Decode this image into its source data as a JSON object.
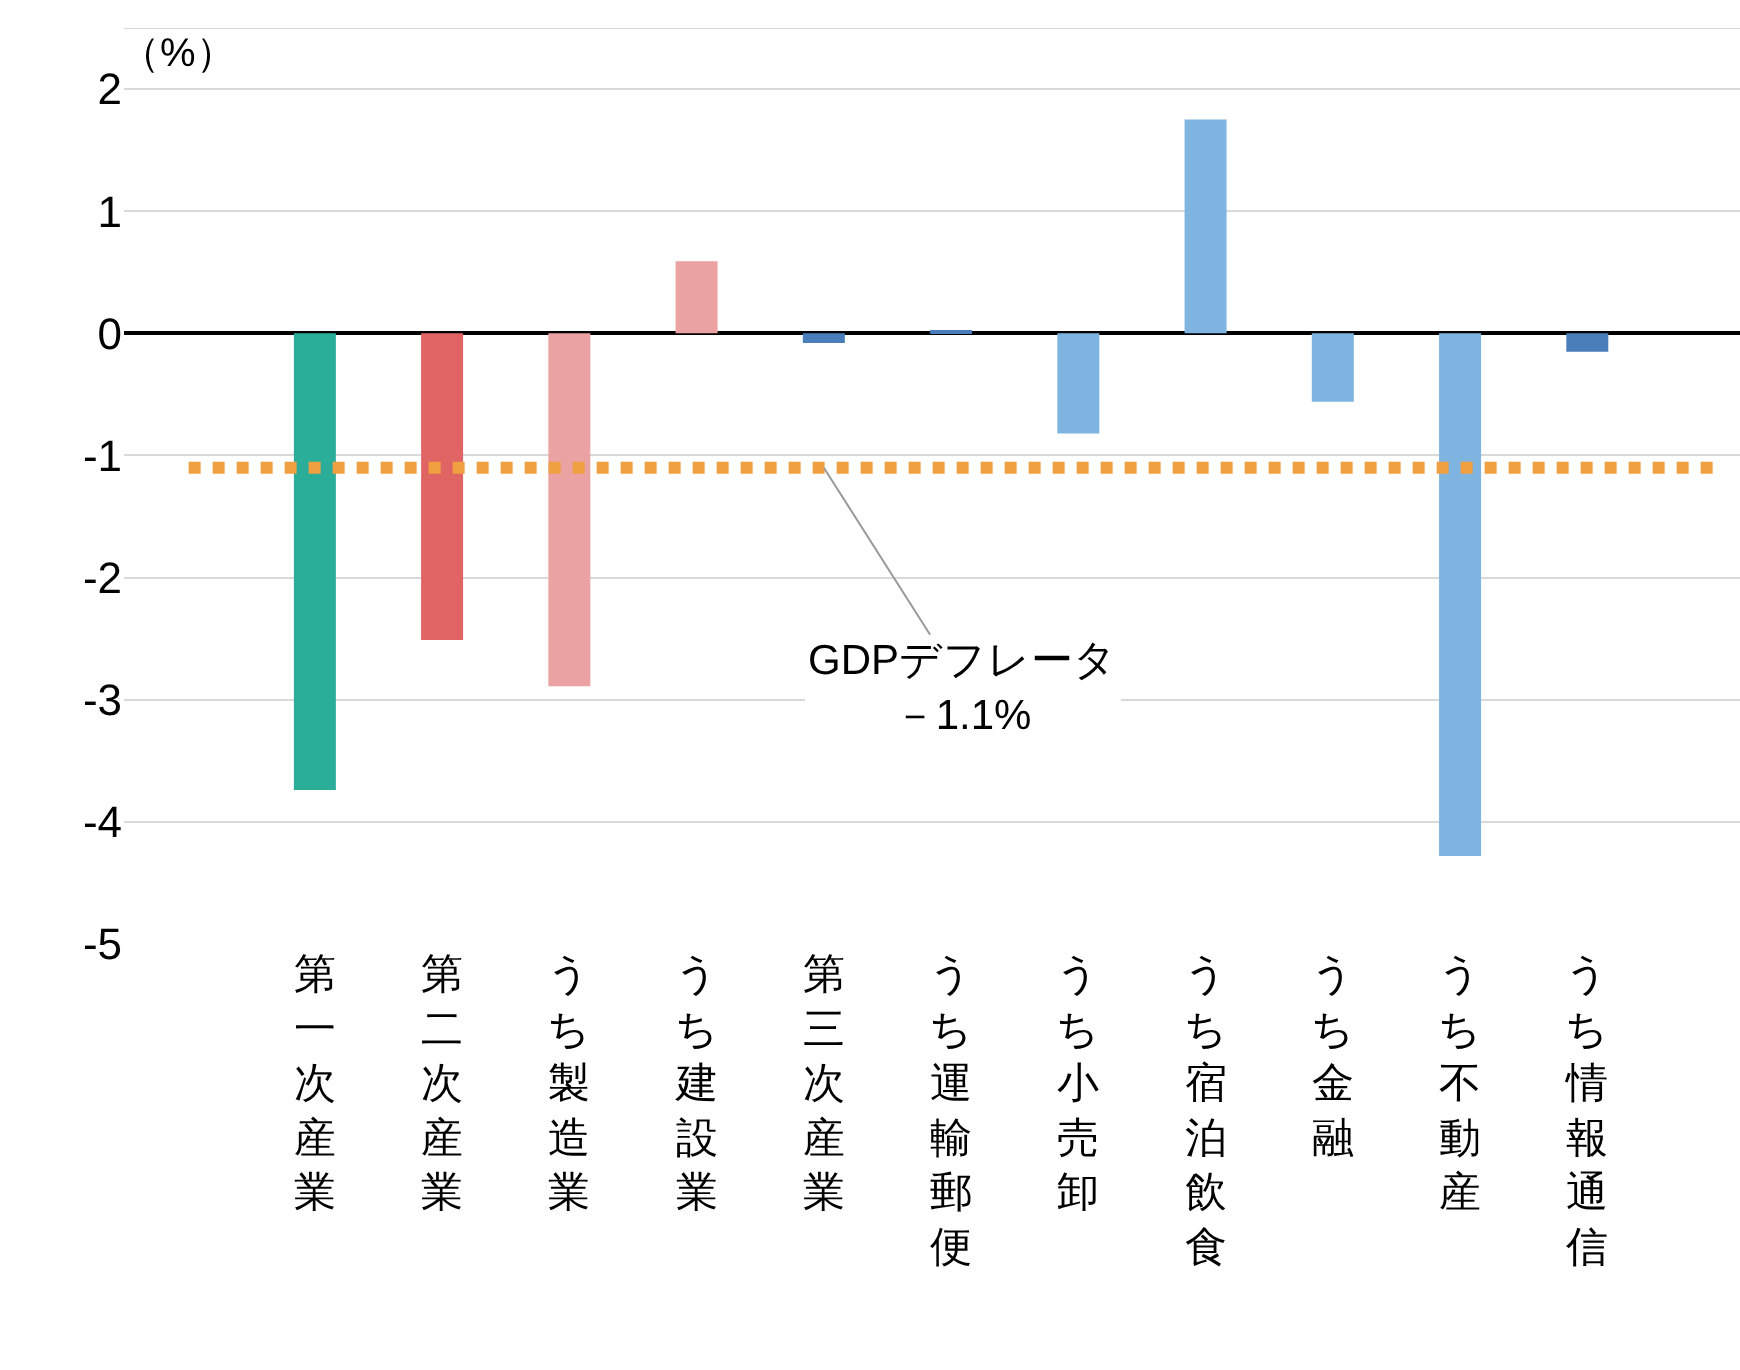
{
  "chart_data": {
    "type": "bar",
    "ylabel": "（%）",
    "categories": [
      "第一次産業",
      "第二次産業",
      "うち製造業",
      "うち建設業",
      "第三次産業",
      "うち運輸郵便",
      "うち小売卸",
      "うち宿泊飲食",
      "うち金融",
      "うち不動産",
      "うち情報通信"
    ],
    "values": [
      -3.74,
      -2.51,
      -2.89,
      0.59,
      -0.08,
      0.02,
      -0.82,
      1.75,
      -0.56,
      -4.28,
      -0.15
    ],
    "colors": [
      "#2aae9a",
      "#e06464",
      "#eba2a2",
      "#eba2a2",
      "#4a7ebb",
      "#4a7ebb",
      "#7fb4e0",
      "#7fb4e0",
      "#7fb4e0",
      "#7fb4e0",
      "#4a7ebb"
    ],
    "ylim": [
      -5,
      2.5
    ],
    "yticks": [
      -5,
      -4,
      -3,
      -2,
      -1,
      0,
      1,
      2
    ],
    "grid": "y",
    "ref_lines": [
      {
        "axis": "y",
        "value": -1.1,
        "label": "GDPデフレータ－1.1%",
        "color": "#f0a040",
        "line_style": "dotted"
      }
    ]
  }
}
